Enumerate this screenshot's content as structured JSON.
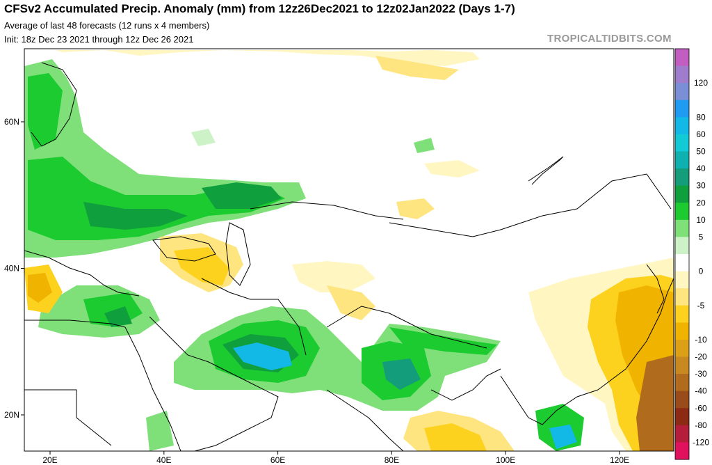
{
  "header": {
    "title": "CFSv2 Accumulated Precip. Anomaly (mm) from 12z26Dec2021 to 12z02Jan2022 (Days 1-7)",
    "subtitle": "Average of last 48 forecasts (12 runs x 4 members)",
    "init": "Init: 18z Dec 23 2021 through 12z Dec 26 2021",
    "credit": "TROPICALTIDBITS.COM"
  },
  "map": {
    "region": "Europe / Middle East / Asia",
    "lat_labels": [
      {
        "text": "60N",
        "lat": 60
      },
      {
        "text": "40N",
        "lat": 40
      },
      {
        "text": "20N",
        "lat": 20
      }
    ],
    "lon_labels": [
      {
        "text": "20E",
        "lon": 20
      },
      {
        "text": "40E",
        "lon": 40
      },
      {
        "text": "60E",
        "lon": 60
      },
      {
        "text": "80E",
        "lon": 80
      },
      {
        "text": "100E",
        "lon": 100
      },
      {
        "text": "120E",
        "lon": 120
      }
    ]
  },
  "colorbar": {
    "levels": [
      {
        "label": "",
        "color": "#c25ec2"
      },
      {
        "label": "120",
        "color": "#a07ccd"
      },
      {
        "label": "",
        "color": "#7a8fd6"
      },
      {
        "label": "80",
        "color": "#1f9bf2"
      },
      {
        "label": "60",
        "color": "#12b8e6"
      },
      {
        "label": "50",
        "color": "#12c9d6"
      },
      {
        "label": "40",
        "color": "#0fb0b0"
      },
      {
        "label": "30",
        "color": "#139d7a"
      },
      {
        "label": "20",
        "color": "#0fa03d"
      },
      {
        "label": "10",
        "color": "#1bcb2f"
      },
      {
        "label": "5",
        "color": "#7fe07a"
      },
      {
        "label": "",
        "color": "#cdf2c8"
      },
      {
        "label": "0",
        "color": "#ffffff"
      },
      {
        "label": "",
        "color": "#fff6c2"
      },
      {
        "label": "-5",
        "color": "#ffe580"
      },
      {
        "label": "",
        "color": "#fdd21f"
      },
      {
        "label": "-10",
        "color": "#f0b400"
      },
      {
        "label": "-20",
        "color": "#dca016"
      },
      {
        "label": "-30",
        "color": "#c88920"
      },
      {
        "label": "-40",
        "color": "#b06c1c"
      },
      {
        "label": "-60",
        "color": "#9a4b1a"
      },
      {
        "label": "-80",
        "color": "#8c2a14"
      },
      {
        "label": "-120",
        "color": "#b41e3a"
      },
      {
        "label": "",
        "color": "#e0125e"
      }
    ]
  }
}
